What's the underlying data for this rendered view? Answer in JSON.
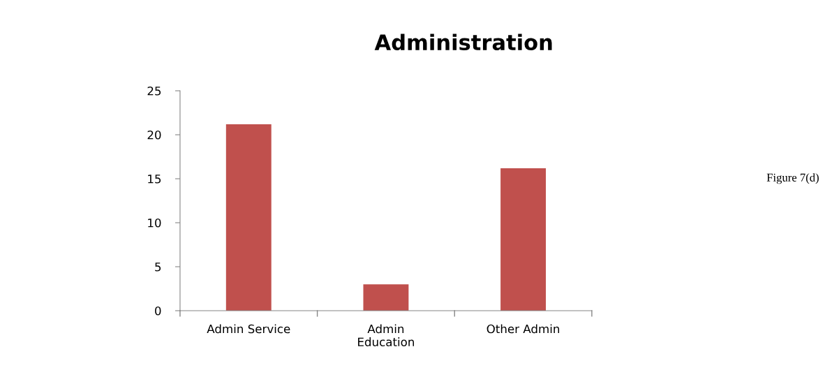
{
  "chart_data": {
    "type": "bar",
    "title": "Administration",
    "categories": [
      "Admin Service",
      "Admin\nEducation",
      "Other Admin"
    ],
    "values": [
      21.2,
      3.0,
      16.2
    ],
    "color": "#c0504d",
    "ylim": [
      0,
      25
    ],
    "yticks": [
      0,
      5,
      10,
      15,
      20,
      25
    ],
    "grid": false,
    "legend": false,
    "annotations": [
      "Figure 7(d)"
    ]
  }
}
